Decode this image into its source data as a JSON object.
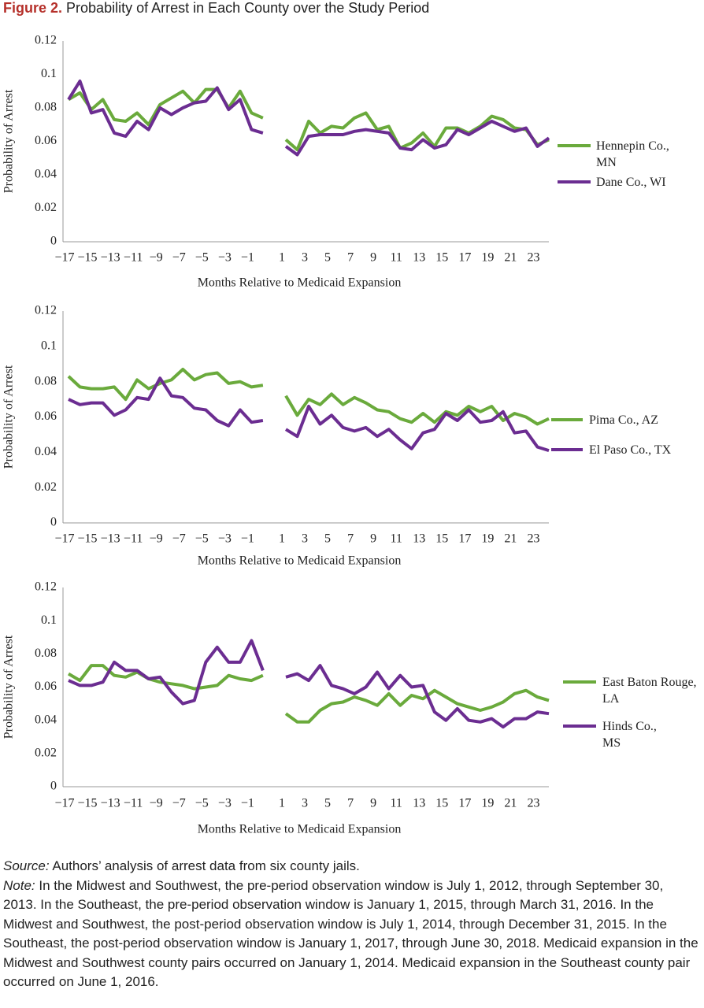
{
  "figure_label": "Figure 2.",
  "title": "Probability of Arrest in Each County over the Study Period",
  "chart_data": [
    {
      "type": "line",
      "y_label": "Probability of Arrest",
      "x_label": "Months Relative to Medicaid Expansion",
      "categories": [
        "−17",
        null,
        "−15",
        null,
        "−13",
        null,
        "−11",
        null,
        "−9",
        null,
        "−7",
        null,
        "−5",
        null,
        "−3",
        null,
        "−1",
        null,
        null,
        "1",
        null,
        "3",
        null,
        "5",
        null,
        "7",
        null,
        "9",
        null,
        "11",
        null,
        "13",
        null,
        "15",
        null,
        "17",
        null,
        "19",
        null,
        "21",
        null,
        "23",
        null
      ],
      "ylim": [
        0,
        0.12
      ],
      "yticks": [
        0,
        0.02,
        0.04,
        0.06,
        0.08,
        0.1,
        0.12
      ],
      "series": [
        {
          "name": "Hennepin Co., MN",
          "color": "#6aaa3c",
          "values": [
            0.085,
            0.089,
            0.079,
            0.085,
            0.073,
            0.072,
            0.077,
            0.07,
            0.082,
            0.086,
            0.09,
            0.083,
            0.091,
            0.091,
            0.08,
            0.09,
            0.077,
            0.074,
            null,
            0.061,
            0.055,
            0.072,
            0.065,
            0.069,
            0.068,
            0.074,
            0.077,
            0.067,
            0.069,
            0.056,
            0.059,
            0.065,
            0.057,
            0.068,
            0.068,
            0.065,
            0.069,
            0.075,
            0.073,
            0.068,
            0.067,
            0.058,
            0.061
          ]
        },
        {
          "name": "Dane Co., WI",
          "color": "#6b2d91",
          "values": [
            0.085,
            0.096,
            0.077,
            0.079,
            0.065,
            0.063,
            0.072,
            0.067,
            0.08,
            0.076,
            0.08,
            0.083,
            0.084,
            0.092,
            0.079,
            0.085,
            0.067,
            0.065,
            null,
            0.057,
            0.052,
            0.063,
            0.064,
            0.064,
            0.064,
            0.066,
            0.067,
            0.066,
            0.065,
            0.056,
            0.055,
            0.061,
            0.056,
            0.058,
            0.067,
            0.064,
            0.068,
            0.072,
            0.069,
            0.066,
            0.068,
            0.057,
            0.062
          ]
        }
      ]
    },
    {
      "type": "line",
      "y_label": "Probability of Arrest",
      "x_label": "Months Relative to Medicaid Expansion",
      "categories": [
        "−17",
        null,
        "−15",
        null,
        "−13",
        null,
        "−11",
        null,
        "−9",
        null,
        "−7",
        null,
        "−5",
        null,
        "−3",
        null,
        "−1",
        null,
        null,
        "1",
        null,
        "3",
        null,
        "5",
        null,
        "7",
        null,
        "9",
        null,
        "11",
        null,
        "13",
        null,
        "15",
        null,
        "17",
        null,
        "19",
        null,
        "21",
        null,
        "23",
        null
      ],
      "ylim": [
        0,
        0.12
      ],
      "yticks": [
        0,
        0.02,
        0.04,
        0.06,
        0.08,
        0.1,
        0.12
      ],
      "series": [
        {
          "name": "Pima Co., AZ",
          "color": "#6aaa3c",
          "values": [
            0.083,
            0.077,
            0.076,
            0.076,
            0.077,
            0.07,
            0.081,
            0.076,
            0.079,
            0.081,
            0.087,
            0.081,
            0.084,
            0.085,
            0.079,
            0.08,
            0.077,
            0.078,
            null,
            0.072,
            0.061,
            0.07,
            0.067,
            0.073,
            0.067,
            0.071,
            0.068,
            0.064,
            0.063,
            0.059,
            0.057,
            0.062,
            0.057,
            0.063,
            0.061,
            0.066,
            0.063,
            0.066,
            0.058,
            0.062,
            0.06,
            0.056,
            0.059
          ]
        },
        {
          "name": "El Paso Co., TX",
          "color": "#6b2d91",
          "values": [
            0.07,
            0.067,
            0.068,
            0.068,
            0.061,
            0.064,
            0.071,
            0.07,
            0.082,
            0.072,
            0.071,
            0.065,
            0.064,
            0.058,
            0.055,
            0.064,
            0.057,
            0.058,
            null,
            0.053,
            0.049,
            0.066,
            0.056,
            0.061,
            0.054,
            0.052,
            0.054,
            0.049,
            0.053,
            0.047,
            0.042,
            0.051,
            0.053,
            0.062,
            0.058,
            0.064,
            0.057,
            0.058,
            0.063,
            0.051,
            0.052,
            0.043,
            0.041
          ]
        }
      ]
    },
    {
      "type": "line",
      "y_label": "Probability of Arrest",
      "x_label": "Months Relative to Medicaid Expansion",
      "categories": [
        "−17",
        null,
        "−15",
        null,
        "−13",
        null,
        "−11",
        null,
        "−9",
        null,
        "−7",
        null,
        "−5",
        null,
        "−3",
        null,
        "−1",
        null,
        null,
        "1",
        null,
        "3",
        null,
        "5",
        null,
        "7",
        null,
        "9",
        null,
        "11",
        null,
        "13",
        null,
        "15",
        null,
        "17",
        null,
        "19",
        null,
        "21",
        null,
        "23",
        null
      ],
      "ylim": [
        0,
        0.12
      ],
      "yticks": [
        0,
        0.02,
        0.04,
        0.06,
        0.08,
        0.1,
        0.12
      ],
      "series": [
        {
          "name": "East Baton Rouge, LA",
          "color": "#6aaa3c",
          "values": [
            0.068,
            0.064,
            0.073,
            0.073,
            0.067,
            0.066,
            0.069,
            0.065,
            0.063,
            0.062,
            0.061,
            0.059,
            0.06,
            0.061,
            0.067,
            0.065,
            0.064,
            0.067,
            null,
            0.044,
            0.039,
            0.039,
            0.046,
            0.05,
            0.051,
            0.054,
            0.052,
            0.049,
            0.056,
            0.049,
            0.055,
            0.053,
            0.058,
            0.054,
            0.05,
            0.048,
            0.046,
            0.048,
            0.051,
            0.056,
            0.058,
            0.054,
            0.052
          ]
        },
        {
          "name": "Hinds Co., MS",
          "color": "#6b2d91",
          "values": [
            0.064,
            0.061,
            0.061,
            0.063,
            0.075,
            0.07,
            0.07,
            0.065,
            0.066,
            0.057,
            0.05,
            0.052,
            0.075,
            0.084,
            0.075,
            0.075,
            0.088,
            0.07,
            null,
            0.066,
            0.068,
            0.064,
            0.073,
            0.061,
            0.059,
            0.056,
            0.06,
            0.069,
            0.059,
            0.067,
            0.06,
            0.061,
            0.045,
            0.04,
            0.047,
            0.04,
            0.039,
            0.041,
            0.036,
            0.041,
            0.041,
            0.045,
            0.044
          ]
        }
      ]
    }
  ],
  "source": {
    "label": "Source:",
    "text": " Authors’ analysis of arrest data from six county jails."
  },
  "note": {
    "label": "Note:",
    "text": " In the Midwest and Southwest, the pre-period observation window is July 1, 2012, through September 30, 2013. In the Southeast, the pre-period observation window is January 1, 2015, through March 31, 2016. In the Midwest and Southwest, the post-period observation window is July 1, 2014, through December 31, 2015. In the Southeast, the post-period observation window is January 1, 2017, through June 30, 2018. Medicaid expansion in the Midwest and Southwest county pairs occurred on January 1, 2014. Medicaid expansion in the Southeast county pair occurred on June 1, 2016."
  }
}
